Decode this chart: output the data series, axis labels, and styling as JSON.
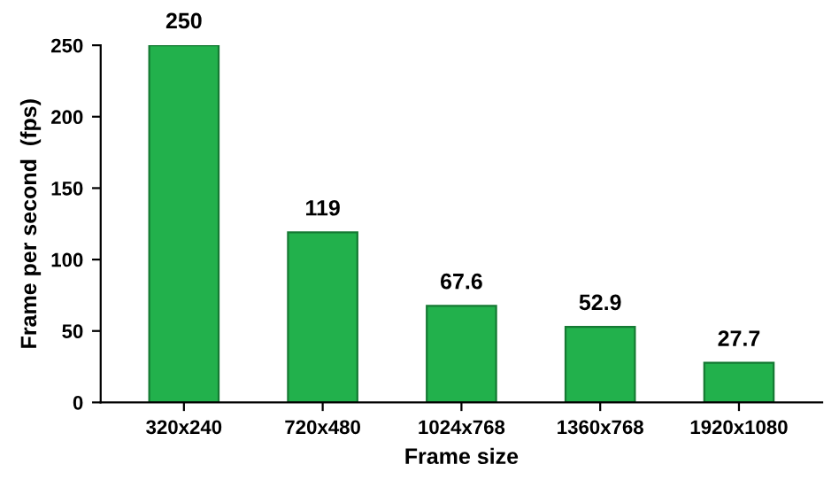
{
  "chart_data": {
    "type": "bar",
    "xlabel": "Frame size",
    "ylabel": "Frame per second  (fps)",
    "categories": [
      "320x240",
      "720x480",
      "1024x768",
      "1360x768",
      "1920x1080"
    ],
    "values": [
      250,
      119,
      67.6,
      52.9,
      27.7
    ],
    "color": "#22b14c",
    "ylim": [
      0,
      250
    ],
    "yticks": [
      0,
      50,
      100,
      150,
      200,
      250
    ],
    "data_labels": true,
    "grid": false
  }
}
